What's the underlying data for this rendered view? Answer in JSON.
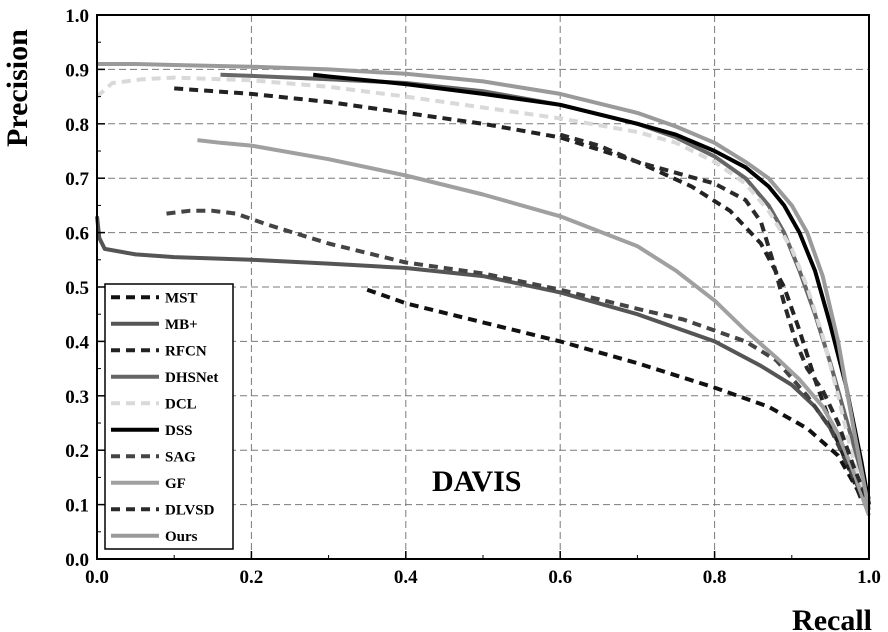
{
  "chart_data": {
    "type": "line",
    "title": "",
    "xlabel": "Recall",
    "ylabel": "Precision",
    "xlim": [
      0,
      1
    ],
    "ylim": [
      0,
      1
    ],
    "xticks": [
      "0.0",
      "0.2",
      "0.4",
      "0.6",
      "0.8",
      "1.0"
    ],
    "yticks": [
      "0.0",
      "0.1",
      "0.2",
      "0.3",
      "0.4",
      "0.5",
      "0.6",
      "0.7",
      "0.8",
      "0.9",
      "1.0"
    ],
    "grid": true,
    "legend_position": "bottom-left",
    "annotation": "DAVIS",
    "series": [
      {
        "name": "MST",
        "style": "dashed",
        "color": "#111111",
        "x": [
          0.35,
          0.4,
          0.5,
          0.6,
          0.7,
          0.8,
          0.87,
          0.92,
          0.96,
          0.98,
          1.0
        ],
        "y": [
          0.495,
          0.47,
          0.435,
          0.4,
          0.36,
          0.315,
          0.28,
          0.24,
          0.19,
          0.14,
          0.09
        ]
      },
      {
        "name": "MB+",
        "style": "solid",
        "color": "#555555",
        "x": [
          0.0,
          0.003,
          0.01,
          0.05,
          0.1,
          0.2,
          0.3,
          0.4,
          0.5,
          0.6,
          0.7,
          0.8,
          0.86,
          0.9,
          0.93,
          0.95,
          0.97,
          0.99,
          1.0
        ],
        "y": [
          0.63,
          0.59,
          0.57,
          0.56,
          0.555,
          0.55,
          0.543,
          0.535,
          0.52,
          0.49,
          0.45,
          0.4,
          0.355,
          0.32,
          0.28,
          0.24,
          0.19,
          0.13,
          0.1
        ]
      },
      {
        "name": "RFCN",
        "style": "dashed",
        "color": "#222222",
        "x": [
          0.1,
          0.2,
          0.3,
          0.4,
          0.5,
          0.6,
          0.7,
          0.77,
          0.82,
          0.86,
          0.89,
          0.91,
          0.93,
          0.95,
          0.97,
          0.99,
          1.0
        ],
        "y": [
          0.865,
          0.855,
          0.84,
          0.82,
          0.8,
          0.775,
          0.73,
          0.685,
          0.64,
          0.58,
          0.5,
          0.42,
          0.33,
          0.25,
          0.18,
          0.11,
          0.09
        ]
      },
      {
        "name": "DHSNet",
        "style": "solid",
        "color": "#666666",
        "x": [
          0.16,
          0.2,
          0.3,
          0.4,
          0.5,
          0.6,
          0.7,
          0.75,
          0.8,
          0.84,
          0.87,
          0.89,
          0.91,
          0.93,
          0.95,
          0.97,
          0.99,
          1.0
        ],
        "y": [
          0.89,
          0.888,
          0.882,
          0.875,
          0.86,
          0.835,
          0.8,
          0.775,
          0.74,
          0.7,
          0.65,
          0.6,
          0.53,
          0.45,
          0.36,
          0.26,
          0.16,
          0.11
        ]
      },
      {
        "name": "DCL",
        "style": "dashed",
        "color": "#d9d9d9",
        "x": [
          0.0,
          0.02,
          0.06,
          0.1,
          0.2,
          0.3,
          0.4,
          0.5,
          0.6,
          0.7,
          0.75,
          0.8,
          0.84,
          0.87,
          0.9,
          0.92,
          0.94,
          0.96,
          0.98,
          1.0
        ],
        "y": [
          0.85,
          0.875,
          0.882,
          0.885,
          0.88,
          0.868,
          0.85,
          0.83,
          0.81,
          0.785,
          0.765,
          0.73,
          0.69,
          0.64,
          0.57,
          0.5,
          0.41,
          0.3,
          0.18,
          0.1
        ]
      },
      {
        "name": "DSS",
        "style": "solid",
        "color": "#000000",
        "x": [
          0.28,
          0.3,
          0.4,
          0.5,
          0.6,
          0.7,
          0.75,
          0.8,
          0.84,
          0.87,
          0.89,
          0.91,
          0.93,
          0.95,
          0.97,
          0.99,
          1.0
        ],
        "y": [
          0.89,
          0.887,
          0.873,
          0.855,
          0.835,
          0.8,
          0.78,
          0.75,
          0.72,
          0.685,
          0.65,
          0.6,
          0.53,
          0.43,
          0.32,
          0.18,
          0.1
        ]
      },
      {
        "name": "SAG",
        "style": "dashed",
        "color": "#444444",
        "x": [
          0.09,
          0.12,
          0.15,
          0.18,
          0.22,
          0.3,
          0.4,
          0.5,
          0.6,
          0.7,
          0.76,
          0.8,
          0.84,
          0.88,
          0.92,
          0.95,
          0.97,
          0.99,
          1.0
        ],
        "y": [
          0.635,
          0.64,
          0.64,
          0.635,
          0.615,
          0.58,
          0.545,
          0.525,
          0.495,
          0.46,
          0.44,
          0.42,
          0.4,
          0.365,
          0.3,
          0.24,
          0.18,
          0.12,
          0.09
        ]
      },
      {
        "name": "GF",
        "style": "solid",
        "color": "#a0a0a0",
        "x": [
          0.13,
          0.16,
          0.2,
          0.3,
          0.4,
          0.5,
          0.6,
          0.7,
          0.75,
          0.8,
          0.84,
          0.88,
          0.91,
          0.94,
          0.96,
          0.98,
          1.0
        ],
        "y": [
          0.77,
          0.765,
          0.76,
          0.735,
          0.705,
          0.67,
          0.63,
          0.575,
          0.53,
          0.475,
          0.42,
          0.37,
          0.33,
          0.28,
          0.23,
          0.16,
          0.08
        ]
      },
      {
        "name": "DLVSD",
        "style": "dashed",
        "color": "#2a2a2a",
        "x": [
          0.6,
          0.65,
          0.7,
          0.75,
          0.8,
          0.82,
          0.84,
          0.86,
          0.875,
          0.89,
          0.905,
          0.92,
          0.94,
          0.96,
          0.98,
          1.0
        ],
        "y": [
          0.78,
          0.76,
          0.73,
          0.71,
          0.69,
          0.675,
          0.66,
          0.62,
          0.55,
          0.47,
          0.4,
          0.35,
          0.31,
          0.25,
          0.17,
          0.1
        ]
      },
      {
        "name": "Ours",
        "style": "solid",
        "color": "#9a9a9a",
        "x": [
          0.0,
          0.05,
          0.1,
          0.2,
          0.3,
          0.4,
          0.5,
          0.6,
          0.7,
          0.75,
          0.8,
          0.84,
          0.87,
          0.9,
          0.92,
          0.94,
          0.96,
          0.98,
          1.0
        ],
        "y": [
          0.91,
          0.91,
          0.908,
          0.905,
          0.9,
          0.892,
          0.878,
          0.855,
          0.82,
          0.795,
          0.765,
          0.73,
          0.7,
          0.65,
          0.6,
          0.52,
          0.4,
          0.24,
          0.09
        ]
      }
    ]
  }
}
